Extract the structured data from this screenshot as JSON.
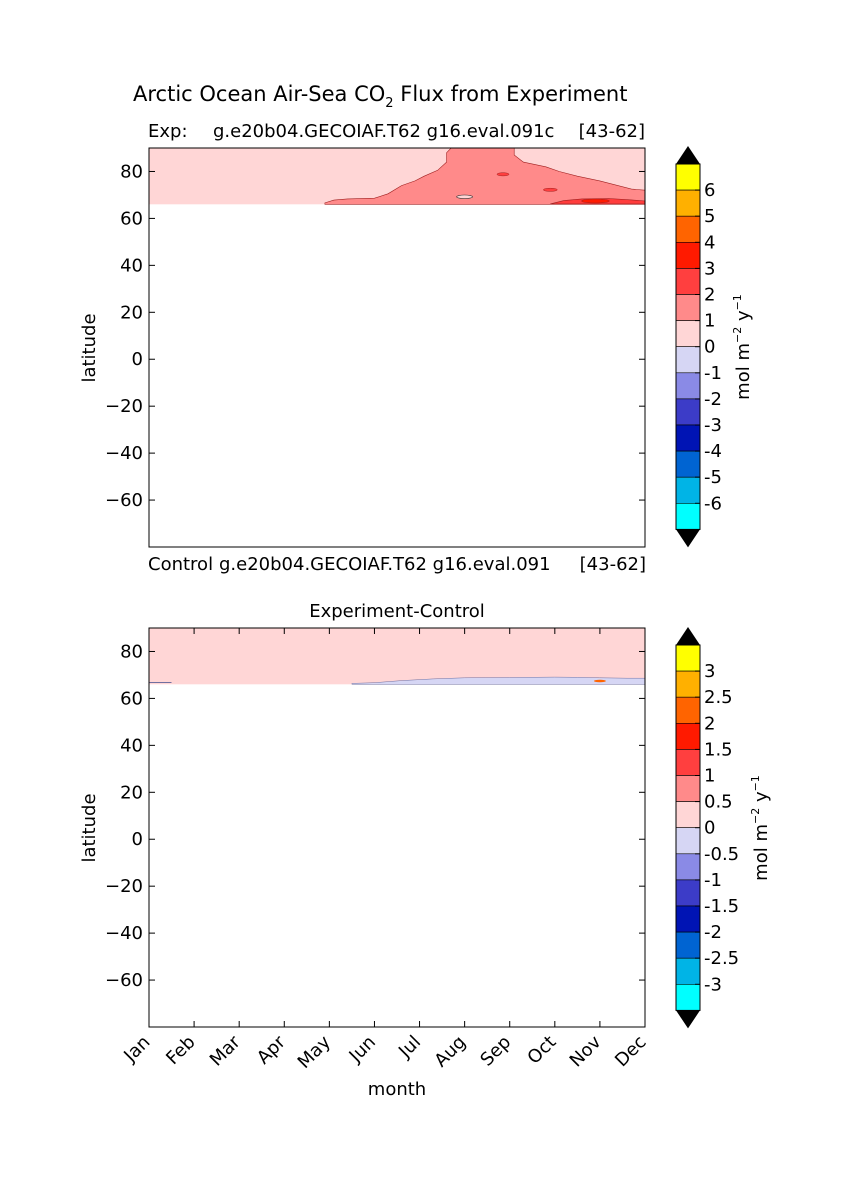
{
  "figure": {
    "title_main": "Arctic Ocean Air-Sea CO",
    "title_sub": "2",
    "title_end": " Flux from Experiment"
  },
  "chart_data": [
    {
      "type": "heatmap",
      "panel": "experiment",
      "header_left": "Exp:",
      "header_center": "g.e20b04.GECOIAF.T62 g16.eval.091c",
      "header_right": "[43-62]",
      "footer_left": "Control",
      "footer_center": "g.e20b04.GECOIAF.T62 g16.eval.091",
      "footer_right": "[43-62]",
      "xlabel": "",
      "ylabel": "latitude",
      "xlim": [
        0,
        11
      ],
      "ylim": [
        -80,
        90
      ],
      "yticks": [
        80,
        60,
        40,
        20,
        0,
        -20,
        -40,
        -60
      ],
      "ytick_labels": [
        "80",
        "60",
        "40",
        "20",
        "0",
        "−20",
        "−40",
        "−60"
      ],
      "data_lat_min": 66,
      "contour_regions": [
        {
          "level": "0 to 1",
          "color": "#ffd6d6",
          "description": "background over entire Arctic band"
        },
        {
          "level": "1 to 2",
          "color": "#ff8a8a",
          "x_start_month": 3.9,
          "x_end_month": 11,
          "lat_top_range": [
            68,
            90
          ]
        },
        {
          "level": "2 to 3",
          "color": "#ff3c3c",
          "x_range": [
            8.8,
            10.9
          ],
          "lat_range": [
            66,
            69
          ]
        }
      ],
      "colorbar": {
        "label_base": "mol m",
        "label_exp1": "−2",
        "label_mid": " y",
        "label_exp2": "−1",
        "ticks": [
          "6",
          "5",
          "4",
          "3",
          "2",
          "1",
          "0",
          "-1",
          "-2",
          "-3",
          "-4",
          "-5",
          "-6"
        ],
        "colors": [
          "#ffff00",
          "#ffb000",
          "#ff6400",
          "#ff1a00",
          "#ff3f3f",
          "#ff8a8a",
          "#ffd6d6",
          "#d6d6f4",
          "#8a8ae6",
          "#3c3cc8",
          "#0014b4",
          "#0064d2",
          "#00b4e6",
          "#00ffff"
        ],
        "extend_colors": {
          "top": "#000000",
          "bottom": "#000000"
        }
      }
    },
    {
      "type": "heatmap",
      "panel": "difference",
      "title": "Experiment-Control",
      "xlabel": "month",
      "ylabel": "latitude",
      "xlim": [
        0,
        11
      ],
      "ylim": [
        -80,
        90
      ],
      "categories": [
        "Jan",
        "Feb",
        "Mar",
        "Apr",
        "May",
        "Jun",
        "Jul",
        "Aug",
        "Sep",
        "Oct",
        "Nov",
        "Dec"
      ],
      "yticks": [
        80,
        60,
        40,
        20,
        0,
        -20,
        -40,
        -60
      ],
      "ytick_labels": [
        "80",
        "60",
        "40",
        "20",
        "0",
        "−20",
        "−40",
        "−60"
      ],
      "data_lat_min": 66,
      "contour_regions": [
        {
          "level": "0 to 0.5",
          "color": "#ffd6d6",
          "description": "background over entire Arctic band"
        },
        {
          "level": "-0.5 to 0",
          "color": "#d6d6f4",
          "x_start_month": 4.5,
          "x_end_month": 11,
          "lat_top_range": [
            66,
            68.5
          ]
        }
      ],
      "colorbar": {
        "label_base": "mol m",
        "label_exp1": "−2",
        "label_mid": " y",
        "label_exp2": "−1",
        "ticks": [
          "3",
          "2.5",
          "2",
          "1.5",
          "1",
          "0.5",
          "0",
          "-0.5",
          "-1",
          "-1.5",
          "-2",
          "-2.5",
          "-3"
        ],
        "colors": [
          "#ffff00",
          "#ffb000",
          "#ff6400",
          "#ff1a00",
          "#ff3f3f",
          "#ff8a8a",
          "#ffd6d6",
          "#d6d6f4",
          "#8a8ae6",
          "#3c3cc8",
          "#0014b4",
          "#0064d2",
          "#00b4e6",
          "#00ffff"
        ],
        "extend_colors": {
          "top": "#000000",
          "bottom": "#000000"
        }
      }
    }
  ]
}
